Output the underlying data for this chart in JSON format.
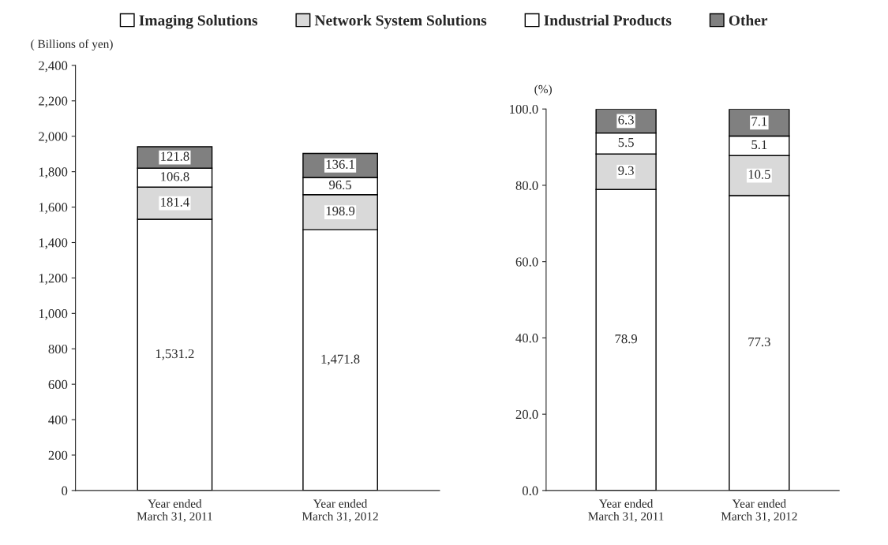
{
  "chart_data": [
    {
      "type": "bar",
      "stacked": true,
      "legend": "top",
      "ylabel": "( Billions of yen)",
      "categories": [
        "Year ended\nMarch 31, 2011",
        "Year ended\nMarch 31, 2012"
      ],
      "series": [
        {
          "name": "Imaging Solutions",
          "color": "#ffffff",
          "values": [
            1531.2,
            1471.8
          ],
          "value_labels": [
            "1,531.2",
            "1,471.8"
          ]
        },
        {
          "name": "Network System Solutions",
          "color": "#d9d9d9",
          "values": [
            181.4,
            198.9
          ],
          "value_labels": [
            "181.4",
            "198.9"
          ]
        },
        {
          "name": "Industrial Products",
          "color": "#ffffff",
          "values": [
            106.8,
            96.5
          ],
          "value_labels": [
            "106.8",
            "96.5"
          ]
        },
        {
          "name": "Other",
          "color": "#808080",
          "values": [
            121.8,
            136.1
          ],
          "value_labels": [
            "121.8",
            "136.1"
          ]
        }
      ],
      "ylim": [
        0,
        2400
      ],
      "yticks": [
        0,
        200,
        400,
        600,
        800,
        {
          "value": 1000,
          "label": "1,000"
        },
        {
          "value": 1200,
          "label": "1,200"
        },
        {
          "value": 1400,
          "label": "1,400"
        },
        {
          "value": 1600,
          "label": "1,600"
        },
        {
          "value": 1800,
          "label": "1,800"
        },
        {
          "value": 2000,
          "label": "2,000"
        },
        {
          "value": 2200,
          "label": "2,200"
        },
        {
          "value": 2400,
          "label": "2,400"
        }
      ]
    },
    {
      "type": "bar",
      "stacked": true,
      "ylabel": "(%)",
      "categories": [
        "Year ended\nMarch 31, 2011",
        "Year ended\nMarch 31, 2012"
      ],
      "series": [
        {
          "color": "#ffffff",
          "values": [
            78.9,
            77.3
          ],
          "value_labels": [
            "78.9",
            "77.3"
          ]
        },
        {
          "color": "#d9d9d9",
          "values": [
            9.3,
            10.5
          ],
          "value_labels": [
            "9.3",
            "10.5"
          ]
        },
        {
          "color": "#ffffff",
          "values": [
            5.5,
            5.1
          ],
          "value_labels": [
            "5.5",
            "5.1"
          ]
        },
        {
          "color": "#808080",
          "values": [
            6.3,
            7.1
          ],
          "value_labels": [
            "6.3",
            "7.1"
          ]
        }
      ],
      "ylim": [
        0,
        100
      ],
      "yticks": [
        {
          "value": 0,
          "label": "0.0"
        },
        {
          "value": 20,
          "label": "20.0"
        },
        {
          "value": 40,
          "label": "40.0"
        },
        {
          "value": 60,
          "label": "60.0"
        },
        {
          "value": 80,
          "label": "80.0"
        },
        {
          "value": 100,
          "label": "100.0"
        }
      ]
    }
  ]
}
